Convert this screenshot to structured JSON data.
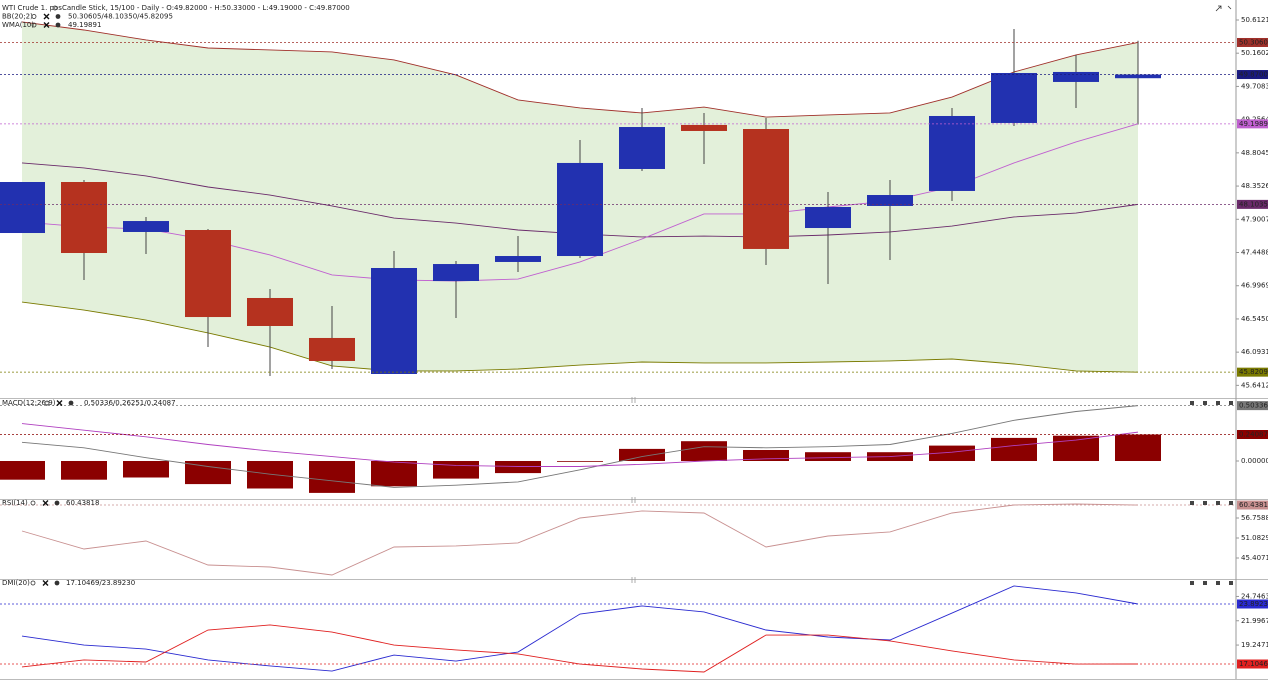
{
  "chart_data": [
    {
      "type": "candlestick",
      "title": "WTI Crude 1. pos",
      "subtitle": "Candle Stick, 15/100 - Daily - O:49.82000 - H:50.33000 - L:49.19000 - C:49.87000",
      "open": [
        47.714,
        48.408,
        47.728,
        47.755,
        46.83,
        46.286,
        45.796,
        47.061,
        47.32,
        47.401,
        48.585,
        49.184,
        49.129,
        47.782,
        48.082,
        48.286,
        49.211,
        49.769,
        49.82
      ],
      "high": [
        48.408,
        48.435,
        47.932,
        47.769,
        46.952,
        46.721,
        47.469,
        47.333,
        47.673,
        48.979,
        49.415,
        49.347,
        49.279,
        48.272,
        48.435,
        49.415,
        50.49,
        50.136,
        50.33
      ],
      "low": [
        47.714,
        47.075,
        47.428,
        46.163,
        45.768,
        45.864,
        45.796,
        46.558,
        47.184,
        47.374,
        48.558,
        48.653,
        47.279,
        47.02,
        47.347,
        48.15,
        49.17,
        49.415,
        49.19
      ],
      "close": [
        48.408,
        47.442,
        47.877,
        46.571,
        46.449,
        45.973,
        47.238,
        47.292,
        47.401,
        48.667,
        49.156,
        49.102,
        47.497,
        48.068,
        48.231,
        49.306,
        49.891,
        49.905,
        49.87
      ],
      "up_color": "#2231b0",
      "down_color": "#b5321f",
      "last_label": "49.87000",
      "last_color": "#1a1a80",
      "band_fill": "#e3f0da",
      "indicators": [
        {
          "name": "BB(20;2)",
          "legend_values": "50.30605/48.10350/45.82095",
          "color": "#8b1a1a"
        },
        {
          "name": "WMA(10)",
          "legend_values": "49.19891",
          "color": "#b040c0"
        }
      ],
      "series": [
        {
          "color": "#a0302a",
          "last_label": "50.30605",
          "values": [
            50.585,
            50.476,
            50.34,
            50.231,
            50.204,
            50.177,
            50.068,
            49.864,
            49.524,
            49.415,
            49.347,
            49.428,
            49.292,
            49.32,
            49.347,
            49.564,
            49.905,
            50.136,
            50.30605
          ]
        },
        {
          "color": "#6a2a6a",
          "last_label": "48.10350",
          "values": [
            48.667,
            48.599,
            48.49,
            48.34,
            48.231,
            48.082,
            47.918,
            47.85,
            47.755,
            47.701,
            47.66,
            47.673,
            47.66,
            47.687,
            47.728,
            47.809,
            47.932,
            47.986,
            48.1035
          ]
        },
        {
          "color": "#7a7a00",
          "last_label": "45.82095",
          "values": [
            46.775,
            46.666,
            46.53,
            46.354,
            46.163,
            45.905,
            45.837,
            45.837,
            45.864,
            45.918,
            45.959,
            45.946,
            45.946,
            45.959,
            45.973,
            46.0,
            45.932,
            45.837,
            45.82095
          ]
        },
        {
          "color": "#c060d0",
          "last_label": "49.19891",
          "values": [
            47.864,
            47.796,
            47.769,
            47.619,
            47.415,
            47.143,
            47.075,
            47.061,
            47.088,
            47.32,
            47.633,
            47.973,
            47.973,
            48.068,
            48.15,
            48.34,
            48.667,
            48.953,
            49.19891
          ]
        }
      ],
      "ylim": [
        45.483,
        50.816
      ],
      "yticks": [
        {
          "value": 50.6121,
          "label": "50.61210"
        },
        50.16021,
        49.70832,
        49.25642,
        48.80453,
        48.35264,
        47.90074,
        47.44885,
        46.99695,
        46.54506,
        46.09317,
        45.64127
      ]
    },
    {
      "type": "combo",
      "indicators": [
        {
          "name": "MACD(12;26;9)",
          "legend_values": "0.50336/0.26251/0.24087",
          "color": "#8b0000"
        }
      ],
      "series": [
        {
          "kind": "bar",
          "color": "#8b0000",
          "last_label": "0.24087",
          "values": [
            -0.17,
            -0.17,
            -0.15,
            -0.21,
            -0.25,
            -0.29,
            -0.23,
            -0.16,
            -0.11,
            -0.005,
            0.11,
            0.18,
            0.1,
            0.08,
            0.08,
            0.14,
            0.21,
            0.23,
            0.24087
          ]
        },
        {
          "kind": "line",
          "color": "#777777",
          "last_label": "0.50336",
          "values": [
            0.17,
            0.12,
            0.03,
            -0.05,
            -0.12,
            -0.18,
            -0.24,
            -0.22,
            -0.19,
            -0.08,
            0.04,
            0.13,
            0.12,
            0.13,
            0.15,
            0.25,
            0.37,
            0.45,
            0.50336
          ]
        },
        {
          "kind": "line",
          "color": "#b040c0",
          "values": [
            0.34,
            0.28,
            0.22,
            0.15,
            0.09,
            0.04,
            -0.01,
            -0.04,
            -0.05,
            -0.05,
            -0.03,
            0.0,
            0.02,
            0.03,
            0.04,
            0.08,
            0.14,
            0.19,
            0.26251
          ]
        }
      ],
      "ylim": [
        -0.3364,
        0.5545
      ],
      "yticks": [
        {
          "value": 0,
          "label": "0.00000"
        }
      ]
    },
    {
      "type": "line",
      "indicators": [
        {
          "name": "RSI(14)",
          "legend_values": "60.43818",
          "color": "#c08080"
        }
      ],
      "series": [
        {
          "color": "#c89090",
          "last_label": "60.43818",
          "values": [
            53.07,
            47.96,
            50.23,
            43.42,
            42.85,
            40.58,
            48.53,
            48.82,
            49.67,
            56.76,
            58.75,
            58.18,
            48.53,
            51.65,
            52.79,
            58.18,
            60.45,
            60.73,
            60.43818
          ]
        }
      ],
      "ylim": [
        39.728,
        61.868
      ],
      "yticks": [
        56.75888,
        51.08299,
        45.40711
      ]
    },
    {
      "type": "line",
      "indicators": [
        {
          "name": "DMI(20)",
          "legend_values": "17.10469/23.89230",
          "color": "#d02020"
        }
      ],
      "series": [
        {
          "color": "#2a2ad0",
          "last_label": "23.89230",
          "values": [
            20.27,
            19.25,
            18.8,
            17.56,
            16.88,
            16.31,
            18.12,
            17.44,
            18.46,
            22.76,
            23.67,
            22.99,
            20.95,
            20.16,
            19.82,
            22.87,
            25.93,
            25.14,
            23.8923
          ]
        },
        {
          "color": "#e02020",
          "last_label": "17.10469",
          "values": [
            16.77,
            17.56,
            17.33,
            20.95,
            21.52,
            20.72,
            19.25,
            18.69,
            18.24,
            17.1,
            16.54,
            16.2,
            20.38,
            20.38,
            19.71,
            18.58,
            17.56,
            17.1,
            17.10469
          ]
        }
      ],
      "ylim": [
        15.521,
        26.607
      ],
      "yticks": [
        24.74638,
        21.99678,
        19.24718
      ]
    }
  ]
}
